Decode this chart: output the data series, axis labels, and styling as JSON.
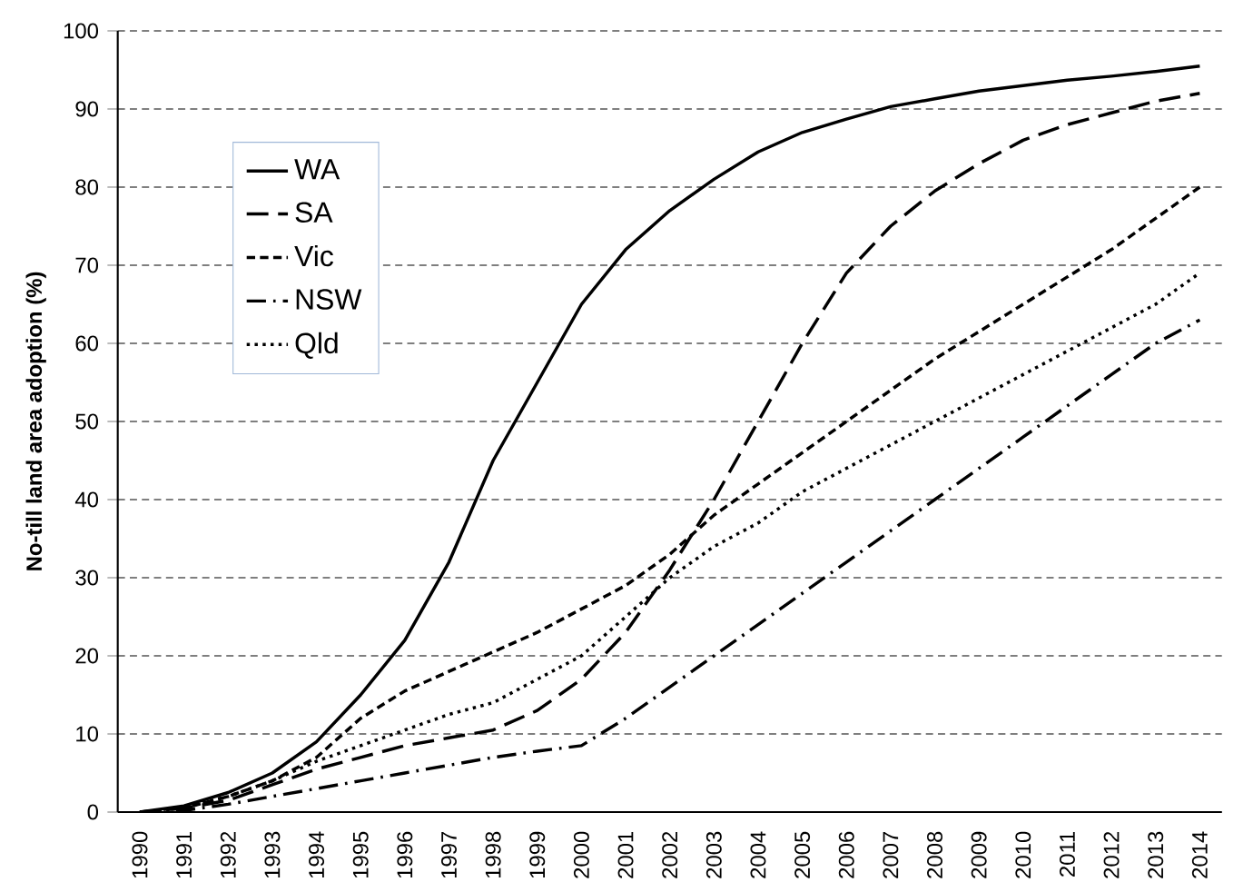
{
  "chart_data": {
    "type": "line",
    "ylabel": "No-till land area adoption (%)",
    "categories": [
      "1990",
      "1991",
      "1992",
      "1993",
      "1994",
      "1995",
      "1996",
      "1997",
      "1998",
      "1999",
      "2000",
      "2001",
      "2002",
      "2003",
      "2004",
      "2005",
      "2006",
      "2007",
      "2008",
      "2009",
      "2010",
      "2011",
      "2012",
      "2013",
      "2014"
    ],
    "series": [
      {
        "name": "WA",
        "color": "#000000",
        "line_style": "solid",
        "values": [
          0,
          0.8,
          2.5,
          5,
          9,
          15,
          22,
          32,
          45,
          55,
          65,
          72,
          77,
          81,
          84.5,
          87,
          88.7,
          90.3,
          91.3,
          92.3,
          93,
          93.7,
          94.2,
          94.8,
          95.5
        ]
      },
      {
        "name": "SA",
        "color": "#000000",
        "line_style": "long dashed",
        "values": [
          0,
          0.5,
          1.5,
          3.5,
          5.5,
          7,
          8.5,
          9.5,
          10.5,
          13,
          17,
          23,
          31,
          40,
          50,
          60,
          69,
          75,
          79.5,
          83,
          86,
          88,
          89.5,
          91,
          92
        ]
      },
      {
        "name": "Vic",
        "color": "#000000",
        "line_style": "dashed",
        "values": [
          0,
          0.5,
          2,
          4,
          7,
          12,
          15.5,
          18,
          20.5,
          23,
          26,
          29,
          33,
          38,
          42,
          46,
          50,
          54,
          58,
          61.5,
          65,
          68.5,
          72,
          76,
          80
        ]
      },
      {
        "name": "NSW",
        "color": "#000000",
        "line_style": "dashdot",
        "values": [
          0,
          0.2,
          1,
          2,
          3,
          4,
          5,
          6,
          7,
          7.8,
          8.5,
          12,
          16,
          20,
          24,
          28,
          32,
          36,
          40,
          44,
          48,
          52,
          56,
          60,
          63
        ]
      },
      {
        "name": "Qld",
        "color": "#000000",
        "line_style": "dotted",
        "values": [
          0,
          0.6,
          2,
          4,
          6.5,
          8.5,
          10.5,
          12.5,
          14,
          17,
          20,
          25,
          30,
          34,
          37,
          41,
          44,
          47,
          50,
          53,
          56,
          59,
          62,
          65,
          69
        ]
      }
    ],
    "ylim": [
      0,
      100
    ],
    "yticks": [
      0,
      10,
      20,
      30,
      40,
      50,
      60,
      70,
      80,
      90,
      100
    ],
    "grid": "y",
    "legend": "top left"
  }
}
